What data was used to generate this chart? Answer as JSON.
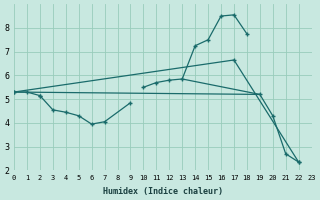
{
  "bg_color": "#c8e8e0",
  "grid_color": "#99ccbb",
  "line_color": "#1a6b6b",
  "xlabel": "Humidex (Indice chaleur)",
  "xlim": [
    0,
    23
  ],
  "ylim": [
    2,
    9
  ],
  "yticks": [
    2,
    3,
    4,
    5,
    6,
    7,
    8
  ],
  "xticks": [
    0,
    1,
    2,
    3,
    4,
    5,
    6,
    7,
    8,
    9,
    10,
    11,
    12,
    13,
    14,
    15,
    16,
    17,
    18,
    19,
    20,
    21,
    22,
    23
  ],
  "curve_upper_left": {
    "x": [
      0,
      1,
      2
    ],
    "y": [
      5.3,
      5.3,
      5.15
    ]
  },
  "curve_upper_right": {
    "x": [
      10,
      11,
      12,
      13,
      14,
      15,
      16,
      17,
      18
    ],
    "y": [
      5.5,
      5.7,
      5.8,
      5.85,
      7.25,
      7.5,
      8.5,
      8.55,
      7.75
    ]
  },
  "curve_lower": {
    "x": [
      2,
      3,
      4,
      5,
      6,
      7,
      9
    ],
    "y": [
      5.15,
      4.55,
      4.45,
      4.3,
      3.95,
      4.05,
      4.85
    ]
  },
  "curve_flat": {
    "x": [
      0,
      19
    ],
    "y": [
      5.3,
      5.2
    ]
  },
  "curve_flat2": {
    "x": [
      13,
      19
    ],
    "y": [
      5.85,
      5.2
    ]
  },
  "curve_diagonal": {
    "x": [
      0,
      17,
      22
    ],
    "y": [
      5.3,
      6.65,
      2.35
    ]
  },
  "curve_rightdrop": {
    "x": [
      19,
      20,
      21,
      22
    ],
    "y": [
      5.2,
      4.3,
      2.7,
      2.35
    ]
  }
}
